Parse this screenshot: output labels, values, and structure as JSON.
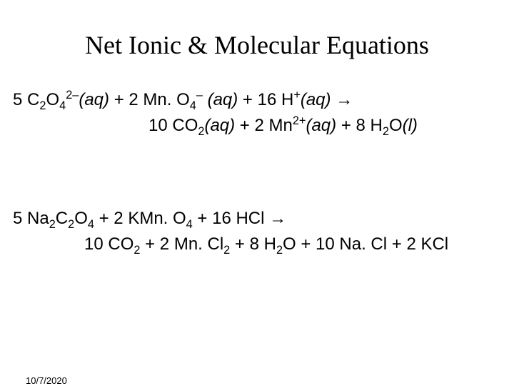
{
  "title": "Net Ionic & Molecular Equations",
  "date": "10/7/2020",
  "equation1": {
    "line1": {
      "coef1": "5 C",
      "sub1": "2",
      "o": "O",
      "sub2": "4",
      "sup1": "2–",
      "aq1": "(aq)",
      "plus1": " + 2 Mn. O",
      "sub3": "4",
      "sup2": "–",
      "space1": " ",
      "aq2": "(aq)",
      "plus2": " + 16 H",
      "sup3": "+",
      "aq3": "(aq)",
      "arrow": " →"
    },
    "line2": {
      "coef1": "10 CO",
      "sub1": "2",
      "aq1": "(aq)",
      "plus1": " + 2 Mn",
      "sup1": "2+",
      "aq2": "(aq)",
      "plus2": " + 8 H",
      "sub2": "2",
      "o": "O",
      "l": "(l)"
    }
  },
  "equation2": {
    "line1": {
      "t1": "5 Na",
      "s1": "2",
      "t2": "C",
      "s2": "2",
      "t3": "O",
      "s3": "4",
      "t4": " + 2 KMn. O",
      "s4": "4",
      "t5": " + 16 HCl ",
      "arrow": "→"
    },
    "line2": {
      "t1": "10 CO",
      "s1": "2",
      "t2": " + 2 Mn. Cl",
      "s2": "2",
      "t3": " + 8 H",
      "s3": "2",
      "t4": "O + 10 Na. Cl + 2 KCl"
    }
  }
}
